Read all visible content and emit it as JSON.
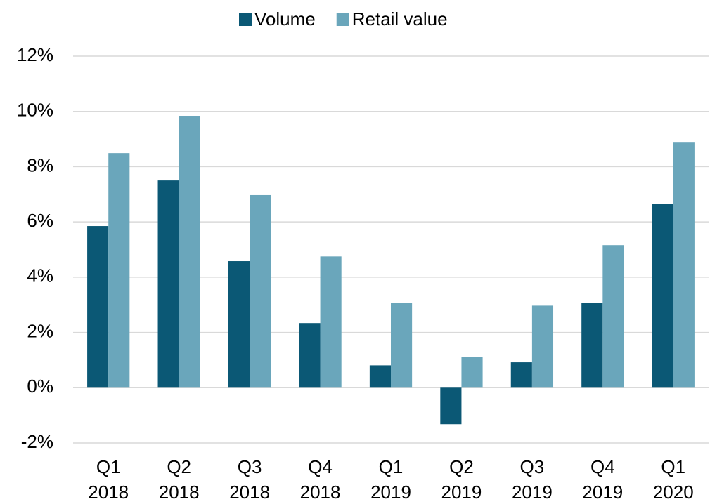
{
  "chart_data": {
    "type": "bar",
    "categories": [
      [
        "Q1",
        "2018"
      ],
      [
        "Q2",
        "2018"
      ],
      [
        "Q3",
        "2018"
      ],
      [
        "Q4",
        "2018"
      ],
      [
        "Q1",
        "2019"
      ],
      [
        "Q2",
        "2019"
      ],
      [
        "Q3",
        "2019"
      ],
      [
        "Q4",
        "2019"
      ],
      [
        "Q1",
        "2020"
      ]
    ],
    "series": [
      {
        "name": "Volume",
        "color": "#0b5875",
        "values": [
          5.85,
          7.5,
          4.58,
          2.34,
          0.81,
          -1.32,
          0.92,
          3.08,
          6.64
        ]
      },
      {
        "name": "Retail value",
        "color": "#6aa6bb",
        "values": [
          8.49,
          9.84,
          6.97,
          4.75,
          3.08,
          1.12,
          2.97,
          5.16,
          8.87
        ]
      }
    ],
    "ylim": [
      -2,
      12
    ],
    "yticks": [
      {
        "value": -2,
        "label": "-2%"
      },
      {
        "value": 0,
        "label": "0%"
      },
      {
        "value": 2,
        "label": "2%"
      },
      {
        "value": 4,
        "label": "4%"
      },
      {
        "value": 6,
        "label": "6%"
      },
      {
        "value": 8,
        "label": "8%"
      },
      {
        "value": 10,
        "label": "10%"
      },
      {
        "value": 12,
        "label": "12%"
      }
    ],
    "grid": true,
    "legend": "top"
  }
}
